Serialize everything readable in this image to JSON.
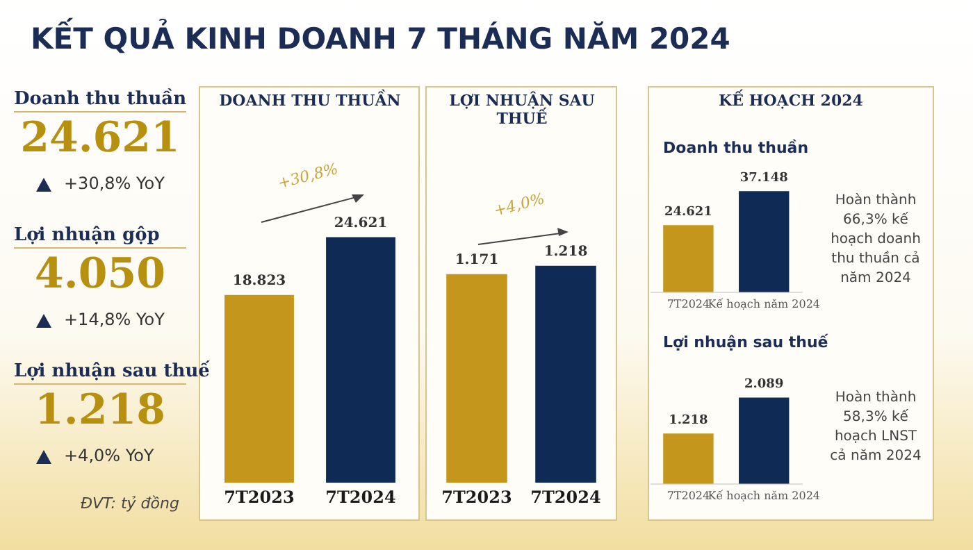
{
  "chart_data": [
    {
      "type": "other",
      "title": "KẾT QUẢ KINH DOANH 7 THÁNG NĂM 2024",
      "annotations": [
        "Doanh thu thuần",
        "24.621",
        "+30,8% YoY",
        "Lợi nhuận gộp",
        "4.050",
        "+14,8% YoY",
        "Lợi nhuận sau thuế",
        "1.218",
        "+4,0% YoY",
        "ĐVT: tỷ đồng"
      ]
    },
    {
      "type": "bar",
      "title": "DOANH THU THUẦN",
      "categories": [
        "7T2023",
        "7T2024"
      ],
      "values": [
        18823,
        24621
      ],
      "value_labels": [
        "18.823",
        "24.621"
      ],
      "colors": [
        "#c4961c",
        "#0f2a55"
      ],
      "annotations": [
        "+30,8%"
      ]
    },
    {
      "type": "bar",
      "title": "LỢI NHUẬN SAU THUẾ",
      "categories": [
        "7T2023",
        "7T2024"
      ],
      "values": [
        1171,
        1218
      ],
      "value_labels": [
        "1.171",
        "1.218"
      ],
      "colors": [
        "#c4961c",
        "#0f2a55"
      ],
      "annotations": [
        "+4,0%"
      ]
    },
    {
      "type": "bar",
      "title": "KẾ HOẠCH 2024",
      "subtitle": "Doanh thu thuần",
      "categories": [
        "7T2024",
        "Kế hoạch năm 2024"
      ],
      "values": [
        24621,
        37148
      ],
      "value_labels": [
        "24.621",
        "37.148"
      ],
      "colors": [
        "#c4961c",
        "#0f2a55"
      ],
      "annotations": [
        "Hoàn thành 66,3% kế hoạch doanh thu thuần cả năm 2024"
      ]
    },
    {
      "type": "bar",
      "subtitle": "Lợi nhuận sau thuế",
      "categories": [
        "7T2024",
        "Kế hoạch năm 2024"
      ],
      "values": [
        1218,
        2089
      ],
      "value_labels": [
        "1.218",
        "2.089"
      ],
      "colors": [
        "#c4961c",
        "#0f2a55"
      ],
      "annotations": [
        "Hoàn thành 58,3% kế hoạch LNST cả năm 2024"
      ]
    }
  ]
}
